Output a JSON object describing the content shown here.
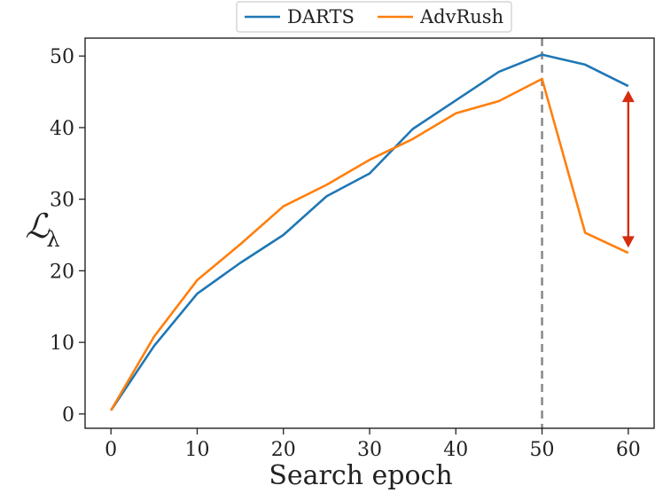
{
  "chart_data": {
    "type": "line",
    "title": "",
    "xlabel": "Search epoch",
    "ylabel": "ℒ",
    "ylabel_subscript": "λ",
    "xlim": [
      -3,
      63
    ],
    "ylim": [
      -2,
      52.5
    ],
    "xticks": [
      0,
      10,
      20,
      30,
      40,
      50,
      60
    ],
    "yticks": [
      0,
      10,
      20,
      30,
      40,
      50
    ],
    "grid": false,
    "legend": {
      "position": "top-center",
      "entries": [
        "DARTS",
        "AdvRush"
      ]
    },
    "series": [
      {
        "name": "DARTS",
        "color": "#1f77b4",
        "x": [
          0,
          5,
          10,
          15,
          20,
          25,
          30,
          35,
          40,
          45,
          50,
          55,
          60
        ],
        "y": [
          0.5,
          9.5,
          16.8,
          21.1,
          25.0,
          30.4,
          33.6,
          39.8,
          43.8,
          47.8,
          50.2,
          48.8,
          45.8
        ]
      },
      {
        "name": "AdvRush",
        "color": "#ff7f0e",
        "x": [
          0,
          5,
          10,
          15,
          20,
          25,
          30,
          35,
          40,
          45,
          50,
          55,
          60
        ],
        "y": [
          0.5,
          10.8,
          18.7,
          23.7,
          29.0,
          32.0,
          35.5,
          38.4,
          42.0,
          43.7,
          46.8,
          25.3,
          22.5
        ]
      }
    ],
    "annotations": {
      "vline": {
        "x": 50,
        "color": "#888888",
        "style": "dashed"
      },
      "double_arrow": {
        "x": 60,
        "y_from": 44.8,
        "y_to": 23.6,
        "color": "#d62c0e"
      }
    }
  }
}
